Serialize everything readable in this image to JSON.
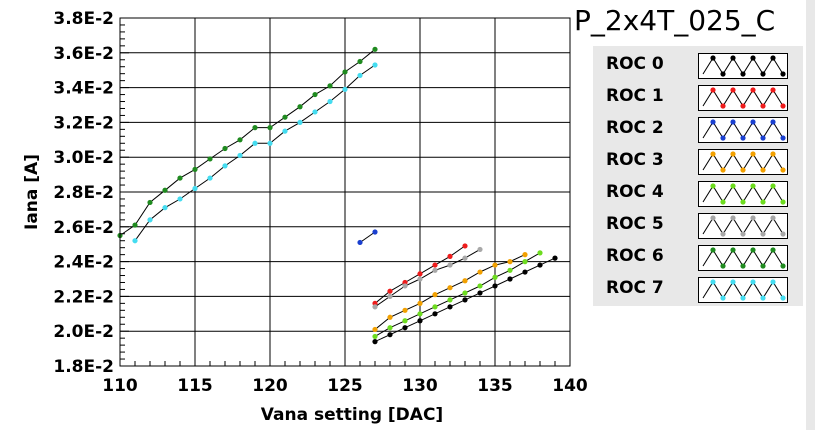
{
  "title": "P_2x4T_025_C",
  "chart_data": {
    "type": "line",
    "xlabel": "Vana setting [DAC]",
    "ylabel": "Iana [A]",
    "xlim": [
      110,
      140
    ],
    "ylim": [
      0.018,
      0.038
    ],
    "xticks": [
      110,
      115,
      120,
      125,
      130,
      135,
      140
    ],
    "xtick_labels": [
      "110",
      "115",
      "120",
      "125",
      "130",
      "135",
      "140"
    ],
    "yticks": [
      0.018,
      0.02,
      0.022,
      0.024,
      0.026,
      0.028,
      0.03,
      0.032,
      0.034,
      0.036,
      0.038
    ],
    "ytick_labels": [
      "1.8E-2",
      "2.0E-2",
      "2.2E-2",
      "2.4E-2",
      "2.6E-2",
      "2.8E-2",
      "3.0E-2",
      "3.2E-2",
      "3.4E-2",
      "3.6E-2",
      "3.8E-2"
    ],
    "grid": true,
    "legend_position": "right",
    "series": [
      {
        "name": "ROC 0",
        "color": "#000000",
        "x": [
          127,
          128,
          129,
          130,
          131,
          132,
          133,
          134,
          135,
          136,
          137,
          138,
          139
        ],
        "y": [
          0.0194,
          0.0198,
          0.0202,
          0.0206,
          0.021,
          0.0214,
          0.0218,
          0.0222,
          0.0226,
          0.023,
          0.0234,
          0.0238,
          0.0242
        ]
      },
      {
        "name": "ROC 1",
        "color": "#ee1c1c",
        "x": [
          127,
          128,
          129,
          130,
          131,
          132,
          133
        ],
        "y": [
          0.0216,
          0.0223,
          0.0228,
          0.0233,
          0.0238,
          0.0243,
          0.0249
        ]
      },
      {
        "name": "ROC 2",
        "color": "#1a3fcf",
        "x": [
          126,
          127
        ],
        "y": [
          0.0251,
          0.0257
        ]
      },
      {
        "name": "ROC 3",
        "color": "#f2a000",
        "x": [
          127,
          128,
          129,
          130,
          131,
          132,
          133,
          134,
          135,
          136,
          137
        ],
        "y": [
          0.0201,
          0.0208,
          0.0212,
          0.0216,
          0.0221,
          0.0225,
          0.0229,
          0.0234,
          0.0238,
          0.024,
          0.0244
        ]
      },
      {
        "name": "ROC 4",
        "color": "#6ddc1f",
        "x": [
          127,
          128,
          129,
          130,
          131,
          132,
          133,
          134,
          135,
          136,
          137,
          138
        ],
        "y": [
          0.0197,
          0.0202,
          0.0206,
          0.021,
          0.0214,
          0.0218,
          0.0222,
          0.0226,
          0.0231,
          0.0235,
          0.024,
          0.0245
        ]
      },
      {
        "name": "ROC 5",
        "color": "#a8a8a8",
        "x": [
          127,
          128,
          129,
          130,
          131,
          132,
          133,
          134
        ],
        "y": [
          0.0214,
          0.022,
          0.0226,
          0.023,
          0.0235,
          0.0238,
          0.0242,
          0.0247
        ]
      },
      {
        "name": "ROC 6",
        "color": "#1f8a1f",
        "x": [
          110,
          111,
          112,
          113,
          114,
          115,
          116,
          117,
          118,
          119,
          120,
          121,
          122,
          123,
          124,
          125,
          126,
          127
        ],
        "y": [
          0.0255,
          0.0261,
          0.0274,
          0.0281,
          0.0288,
          0.0293,
          0.0299,
          0.0305,
          0.031,
          0.0317,
          0.0317,
          0.0323,
          0.0329,
          0.0336,
          0.0341,
          0.0349,
          0.0355,
          0.0362
        ]
      },
      {
        "name": "ROC 7",
        "color": "#44dcf0",
        "x": [
          111,
          112,
          113,
          114,
          115,
          116,
          117,
          118,
          119,
          120,
          121,
          122,
          123,
          124,
          125,
          126,
          127
        ],
        "y": [
          0.0252,
          0.0264,
          0.0271,
          0.0276,
          0.0282,
          0.0288,
          0.0295,
          0.0301,
          0.0308,
          0.0308,
          0.0315,
          0.032,
          0.0326,
          0.0332,
          0.0339,
          0.0347,
          0.0353
        ]
      }
    ]
  }
}
